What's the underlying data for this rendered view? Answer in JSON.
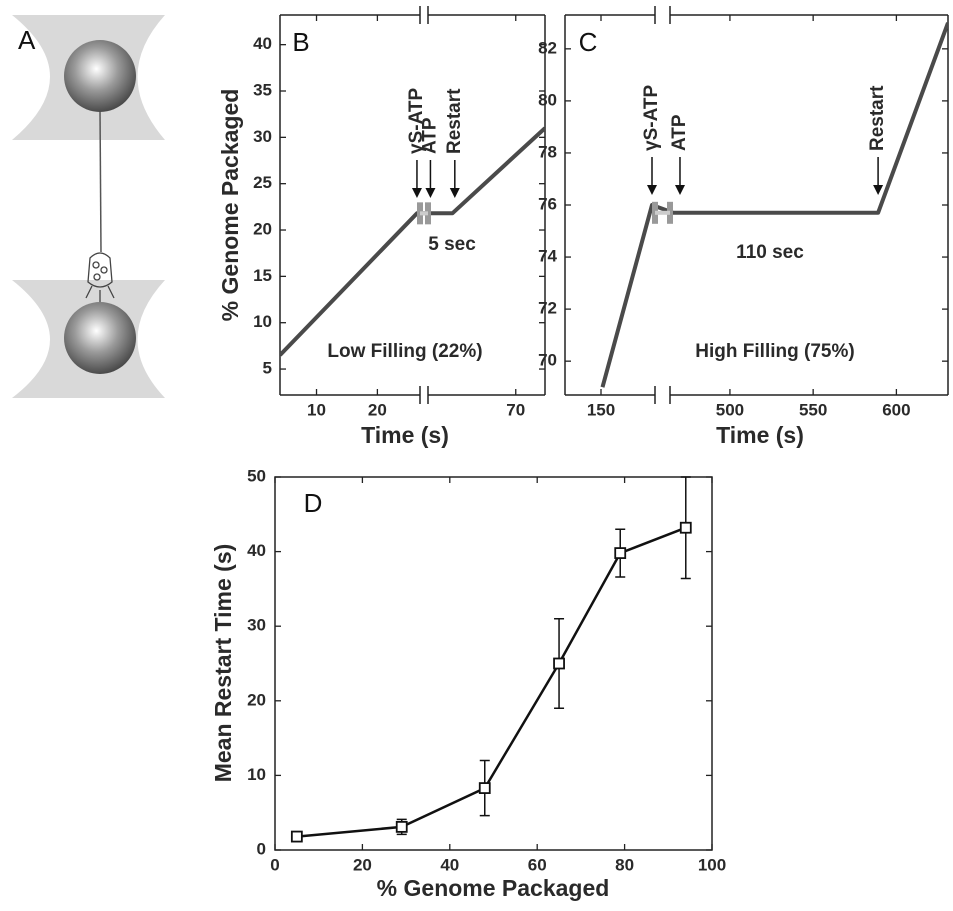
{
  "panel_a": {
    "label": "A"
  },
  "chart_data": [
    {
      "type": "line",
      "panel_label": "B",
      "xlabel": "Time (s)",
      "ylabel": "% Genome Packaged",
      "x": [
        4,
        26.5,
        52,
        57,
        76
      ],
      "values": [
        6.5,
        21.8,
        21.8,
        21.8,
        31
      ],
      "color": "#4a4a4a",
      "xlim": [
        4,
        76
      ],
      "xbreak": [
        27,
        52
      ],
      "xticks": [
        10,
        20,
        70
      ],
      "ylim": [
        2.2,
        43.2
      ],
      "yticks": [
        5,
        10,
        15,
        20,
        25,
        30,
        35,
        40
      ],
      "annotations": [
        {
          "text": "γS-ATP",
          "x": 26.5
        },
        {
          "text": "ATP",
          "x": 52.5
        },
        {
          "text": "Restart",
          "x": 57.5
        }
      ],
      "pause_label": "5 sec",
      "filling_label": "Low Filling (22%)"
    },
    {
      "type": "line",
      "panel_label": "C",
      "xlabel": "Time (s)",
      "x": [
        150.5,
        167,
        466,
        589,
        631
      ],
      "values": [
        69,
        76,
        75.7,
        75.7,
        83
      ],
      "color": "#4a4a4a",
      "xlim": [
        138,
        631
      ],
      "xbreak": [
        168,
        464
      ],
      "xticks": [
        150,
        500,
        550,
        600
      ],
      "ylim": [
        68.7,
        83.3
      ],
      "yticks": [
        70,
        72,
        74,
        76,
        78,
        80,
        82
      ],
      "annotations": [
        {
          "text": "γS-ATP",
          "x": 167
        },
        {
          "text": "ATP",
          "x": 470
        },
        {
          "text": "Restart",
          "x": 589
        }
      ],
      "pause_label": "110 sec",
      "filling_label": "High Filling (75%)"
    },
    {
      "type": "errorline",
      "panel_label": "D",
      "xlabel": "% Genome Packaged",
      "ylabel": "Mean Restart Time (s)",
      "x": [
        5,
        29,
        48,
        65,
        79,
        94
      ],
      "values": [
        1.8,
        3.1,
        8.3,
        25,
        39.8,
        43.2
      ],
      "errors": [
        0.5,
        1,
        3.7,
        6,
        3.2,
        6.8
      ],
      "color": "#111111",
      "xlim": [
        0,
        100
      ],
      "xticks": [
        0,
        20,
        40,
        60,
        80,
        100
      ],
      "ylim": [
        0,
        50
      ],
      "yticks": [
        0,
        10,
        20,
        30,
        40,
        50
      ]
    }
  ]
}
